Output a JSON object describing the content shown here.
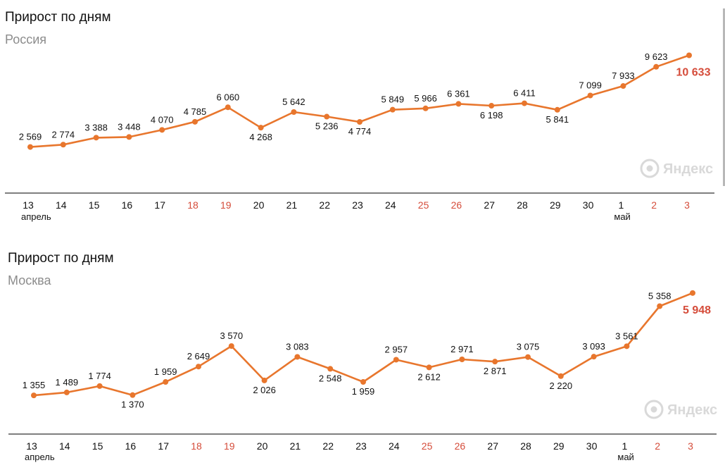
{
  "chart_data": [
    {
      "type": "line",
      "title": "Прирост по дням",
      "subtitle": "Россия",
      "categories": [
        "13",
        "14",
        "15",
        "16",
        "17",
        "18",
        "19",
        "20",
        "21",
        "22",
        "23",
        "24",
        "25",
        "26",
        "27",
        "28",
        "29",
        "30",
        "1",
        "2",
        "3"
      ],
      "weekend_categories": [
        "18",
        "19",
        "25",
        "26",
        "2",
        "3"
      ],
      "month_labels": [
        {
          "label": "апрель",
          "category": "13"
        },
        {
          "label": "май",
          "category": "1"
        }
      ],
      "series": [
        {
          "values": [
            2569,
            2774,
            3388,
            3448,
            4070,
            4785,
            6060,
            4268,
            5642,
            5236,
            4774,
            5849,
            5966,
            6361,
            6198,
            6411,
            5841,
            7099,
            7933,
            9623,
            10633
          ]
        }
      ],
      "value_labels": [
        "2 569",
        "2 774",
        "3 388",
        "3 448",
        "4 070",
        "4 785",
        "6 060",
        "4 268",
        "5 642",
        "5 236",
        "4 774",
        "5 849",
        "5 966",
        "6 361",
        "6 198",
        "6 411",
        "5 841",
        "7 099",
        "7 933",
        "9 623",
        "10 633"
      ],
      "label_below": [
        false,
        false,
        false,
        false,
        false,
        false,
        false,
        true,
        false,
        true,
        true,
        false,
        false,
        false,
        true,
        false,
        true,
        false,
        false,
        false,
        false
      ],
      "ylim": [
        0,
        12000
      ],
      "grid": false
    },
    {
      "type": "line",
      "title": "Прирост по дням",
      "subtitle": "Москва",
      "categories": [
        "13",
        "14",
        "15",
        "16",
        "17",
        "18",
        "19",
        "20",
        "21",
        "22",
        "23",
        "24",
        "25",
        "26",
        "27",
        "28",
        "29",
        "30",
        "1",
        "2",
        "3"
      ],
      "weekend_categories": [
        "18",
        "19",
        "25",
        "26",
        "2",
        "3"
      ],
      "month_labels": [
        {
          "label": "апрель",
          "category": "13"
        },
        {
          "label": "май",
          "category": "1"
        }
      ],
      "series": [
        {
          "values": [
            1355,
            1489,
            1774,
            1370,
            1959,
            2649,
            3570,
            2026,
            3083,
            2548,
            1959,
            2957,
            2612,
            2971,
            2871,
            3075,
            2220,
            3093,
            3561,
            5358,
            5948
          ]
        }
      ],
      "value_labels": [
        "1 355",
        "1 489",
        "1 774",
        "1 370",
        "1 959",
        "2 649",
        "3 570",
        "2 026",
        "3 083",
        "2 548",
        "1 959",
        "2 957",
        "2 612",
        "2 971",
        "2 871",
        "3 075",
        "2 220",
        "3 093",
        "3 561",
        "5 358",
        "5 948"
      ],
      "label_below": [
        false,
        false,
        false,
        true,
        false,
        false,
        false,
        true,
        false,
        true,
        true,
        false,
        true,
        false,
        true,
        false,
        true,
        false,
        false,
        false,
        false
      ],
      "ylim": [
        0,
        6500
      ],
      "grid": false
    }
  ],
  "watermark": {
    "label": "Яндекс",
    "icon": "yandex-logo-icon"
  },
  "colors": {
    "line": "#e8762d",
    "last_value": "#d54c3a",
    "weekend": "#d54c3a",
    "axis": "#333333",
    "watermark": "#d9d9d9"
  }
}
